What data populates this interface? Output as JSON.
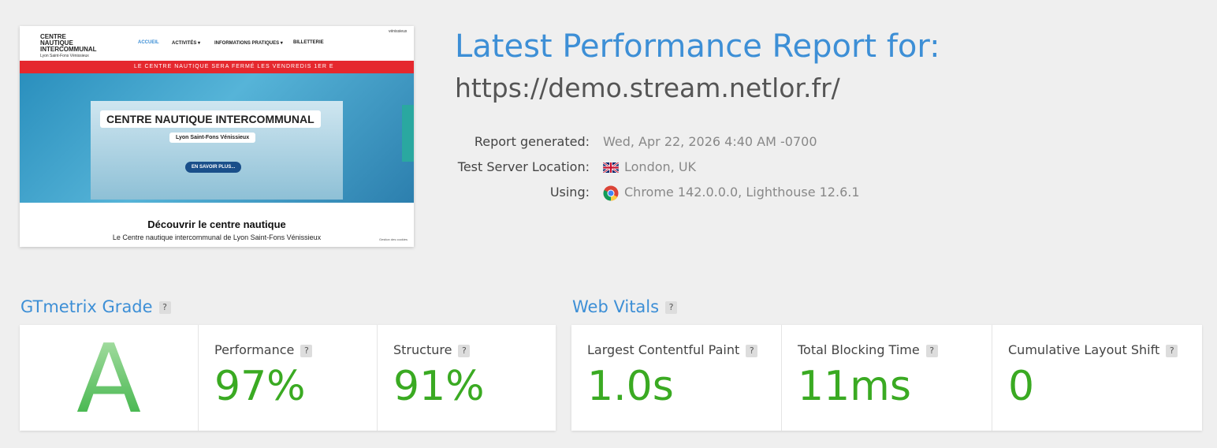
{
  "thumbnail": {
    "logo": "CENTRE NAUTIQUE INTERCOMMUNAL",
    "logo_sub": "Lyon Saint-Fons Vénissieux",
    "nav": [
      "ACCUEIL",
      "ACTIVITÉS ▾",
      "INFORMATIONS PRATIQUES ▾",
      "BILLETTERIE"
    ],
    "corner": "vénissieux",
    "banner": "LE CENTRE NAUTIQUE SERA FERMÉ LES VENDREDIS 1ER E",
    "hero_title": "CENTRE NAUTIQUE INTERCOMMUNAL",
    "hero_sub": "Lyon Saint-Fons Vénissieux",
    "hero_button": "EN SAVOIR PLUS...",
    "section_title": "Découvrir le centre nautique",
    "section_text": "Le Centre nautique intercommunal de Lyon Saint-Fons Vénissieux",
    "cookies": "Gestion des cookies"
  },
  "header": {
    "title": "Latest Performance Report for:",
    "url": "https://demo.stream.netlor.fr/"
  },
  "meta": [
    {
      "label": "Report generated:",
      "value": "Wed, Apr 22, 2026 4:40 AM -0700"
    },
    {
      "label": "Test Server Location:",
      "value": "London, UK"
    },
    {
      "label": "Using:",
      "value": "Chrome 142.0.0.0, Lighthouse 12.6.1"
    }
  ],
  "help": "?",
  "grade": {
    "heading": "GTmetrix Grade",
    "letter": "A",
    "metrics": [
      {
        "label": "Performance",
        "value": "97%"
      },
      {
        "label": "Structure",
        "value": "91%"
      }
    ]
  },
  "vitals": {
    "heading": "Web Vitals",
    "metrics": [
      {
        "label": "Largest Contentful Paint",
        "value": "1.0s"
      },
      {
        "label": "Total Blocking Time",
        "value": "11ms"
      },
      {
        "label": "Cumulative Layout Shift",
        "value": "0"
      }
    ]
  }
}
